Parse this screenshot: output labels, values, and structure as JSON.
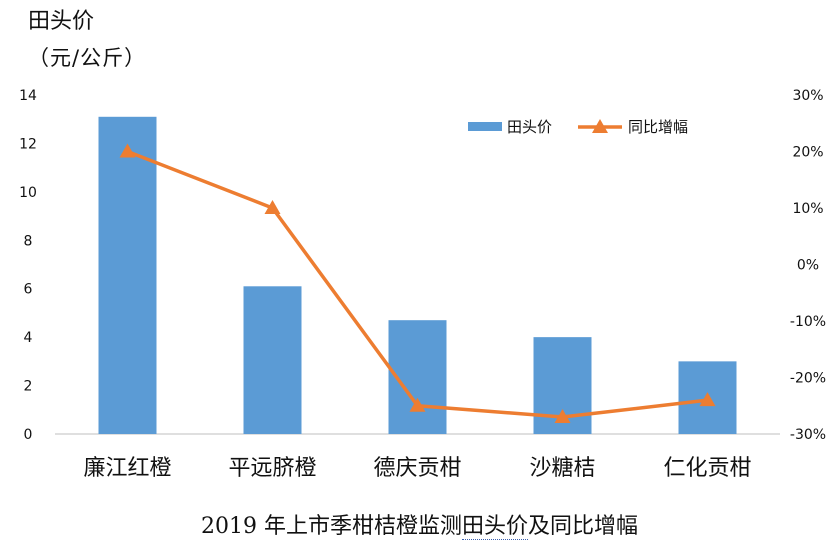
{
  "chart_data": {
    "type": "bar",
    "title": "2019 年上市季柑桔橙监测田头价及同比增幅",
    "ylabel": "田头价",
    "ylabel_unit": "（元/公斤）",
    "categories": [
      "廉江红橙",
      "平远脐橙",
      "德庆贡柑",
      "沙糖桔",
      "仁化贡柑"
    ],
    "ylim": [
      0,
      14
    ],
    "yticks": [
      0,
      2,
      4,
      6,
      8,
      10,
      12,
      14
    ],
    "y2lim": [
      -30,
      30
    ],
    "y2ticks": [
      "30%",
      "20%",
      "10%",
      "0%",
      "-10%",
      "-20%",
      "-30%"
    ],
    "grid": false,
    "legend_position": "top-right",
    "series": [
      {
        "name": "田头价",
        "type": "bar",
        "axis": "left",
        "color": "#5b9bd5",
        "values": [
          13.1,
          6.1,
          4.7,
          4.0,
          3.0
        ]
      },
      {
        "name": "同比增幅",
        "type": "line",
        "axis": "right",
        "color": "#ed7d31",
        "marker": "triangle",
        "values": [
          20,
          10,
          -25,
          -27,
          -24
        ]
      }
    ]
  },
  "caption": {
    "before": "2019 年上市季柑桔橙监测",
    "underlined": "田头价",
    "after": "及同比增幅"
  }
}
